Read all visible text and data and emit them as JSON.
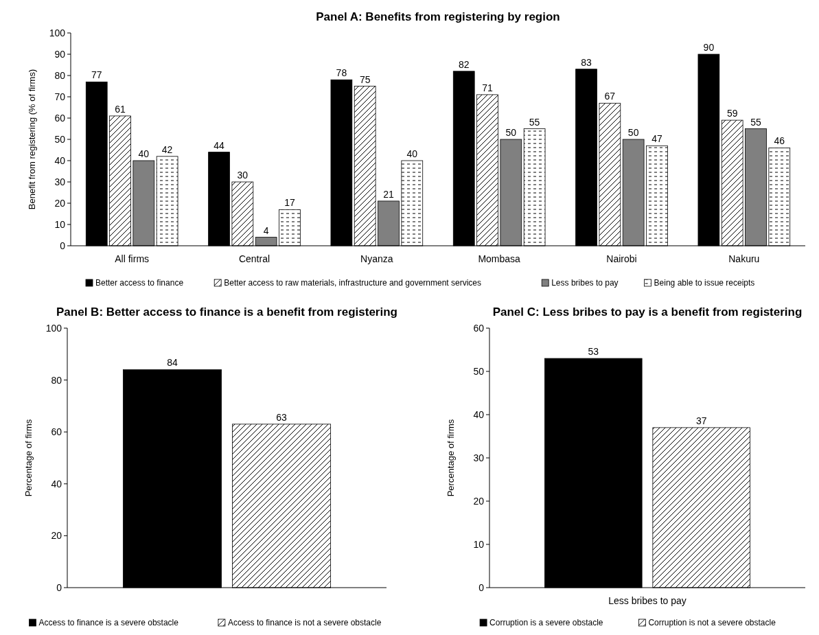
{
  "chart_data": [
    {
      "type": "bar",
      "title": "Panel A: Benefits from registering by region",
      "ylabel": "Benefit from registering (% of firms)",
      "categories": [
        "All firms",
        "Central",
        "Nyanza",
        "Mombasa",
        "Nairobi",
        "Nakuru"
      ],
      "series": [
        {
          "name": "Better access to finance",
          "color": "#000000",
          "values": [
            77,
            44,
            78,
            82,
            83,
            90
          ]
        },
        {
          "name": "Better access to raw materials, infrastructure and government services",
          "color": "#000000",
          "values": [
            61,
            30,
            75,
            71,
            67,
            59
          ]
        },
        {
          "name": "Less bribes to pay",
          "color": "#808080",
          "values": [
            40,
            4,
            21,
            50,
            50,
            55
          ]
        },
        {
          "name": "Being able to issue receipts",
          "color": "#000000",
          "values": [
            42,
            17,
            40,
            55,
            47,
            46
          ]
        }
      ],
      "ylim": [
        0,
        100
      ],
      "yticks": [
        0,
        10,
        20,
        30,
        40,
        50,
        60,
        70,
        80,
        90,
        100
      ],
      "data_labels": true,
      "legend": "bottom",
      "grid": false
    },
    {
      "type": "bar",
      "title": "Panel B: Better access to finance is a benefit from registering",
      "ylabel": "Percentage of firms",
      "categories": [
        null
      ],
      "series": [
        {
          "name": "Access to finance is a severe obstacle",
          "color": "#000000",
          "values": [
            84
          ]
        },
        {
          "name": "Access to finance is not a severe obstacle",
          "color": "#000000",
          "values": [
            63
          ]
        }
      ],
      "ylim": [
        0,
        100
      ],
      "yticks": [
        0,
        20,
        40,
        60,
        80,
        100
      ],
      "data_labels": true,
      "legend": "bottom",
      "grid": false
    },
    {
      "type": "bar",
      "title": "Panel C: Less bribes to pay is a benefit from registering",
      "ylabel": "Percentage of firms",
      "categories": [
        "Less bribes to pay"
      ],
      "series": [
        {
          "name": "Corruption is a severe obstacle",
          "color": "#000000",
          "values": [
            53
          ]
        },
        {
          "name": "Corruption is not a severe obstacle",
          "color": "#000000",
          "values": [
            37
          ]
        }
      ],
      "ylim": [
        0,
        60
      ],
      "yticks": [
        0,
        10,
        20,
        30,
        40,
        50,
        60
      ],
      "data_labels": true,
      "legend": "bottom",
      "grid": false
    }
  ]
}
